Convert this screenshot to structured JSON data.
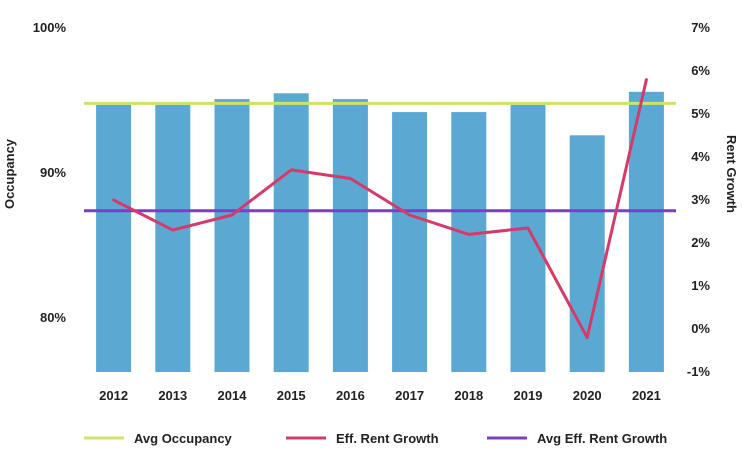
{
  "chart_data": {
    "type": "bar",
    "categories": [
      "2012",
      "2013",
      "2014",
      "2015",
      "2016",
      "2017",
      "2018",
      "2019",
      "2020",
      "2021"
    ],
    "series": [
      {
        "name": "Occupancy",
        "kind": "bar",
        "axis": "left",
        "color": "#5ba9d3",
        "values": [
          94.7,
          94.7,
          95.1,
          95.5,
          95.1,
          94.2,
          94.2,
          94.7,
          92.6,
          95.6
        ]
      },
      {
        "name": "Eff. Rent Growth",
        "kind": "line",
        "axis": "right",
        "color": "#d63a6a",
        "values": [
          3.0,
          2.3,
          2.65,
          3.7,
          3.5,
          2.65,
          2.2,
          2.35,
          -0.2,
          5.8
        ]
      }
    ],
    "reference_lines": [
      {
        "name": "Avg Occupancy",
        "axis": "left",
        "value": 94.8,
        "color": "#cfe36a"
      },
      {
        "name": "Avg Eff. Rent Growth",
        "axis": "right",
        "value": 2.75,
        "color": "#7b3fc4"
      }
    ],
    "left_axis": {
      "label": "Occupancy",
      "range": [
        75,
        100
      ],
      "ticks": [
        100,
        90,
        80
      ],
      "tick_labels": [
        "100%",
        "90%",
        "80%"
      ]
    },
    "right_axis": {
      "label": "Rent Growth",
      "range": [
        -1,
        7
      ],
      "ticks": [
        7,
        6,
        5,
        4,
        3,
        2,
        1,
        0,
        -1
      ],
      "tick_labels": [
        "7%",
        "6%",
        "5%",
        "4%",
        "3%",
        "2%",
        "1%",
        "0%",
        "-1%"
      ]
    },
    "legend": {
      "placement": "bottom",
      "entries": [
        {
          "label": "Avg Occupancy",
          "color": "#cfe36a"
        },
        {
          "label": "Eff. Rent Growth",
          "color": "#d63a6a"
        },
        {
          "label": "Avg Eff. Rent Growth",
          "color": "#7b3fc4"
        }
      ]
    },
    "grid": false
  }
}
